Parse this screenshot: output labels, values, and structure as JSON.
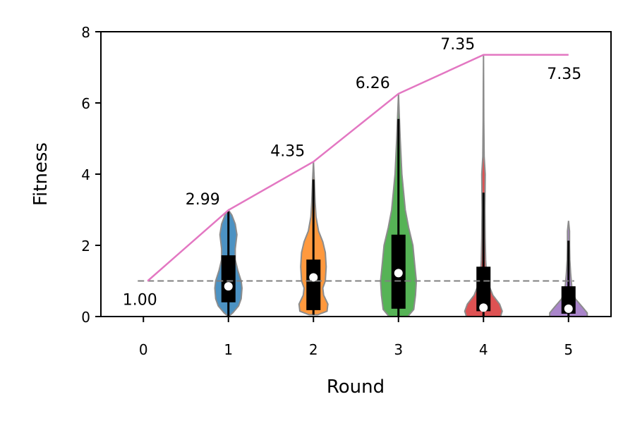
{
  "chart_data": {
    "type": "violin",
    "xlabel": "Round",
    "ylabel": "Fitness",
    "xlim": [
      -0.5,
      5.5
    ],
    "ylim": [
      0,
      8
    ],
    "x_ticks": [
      "0",
      "1",
      "2",
      "3",
      "4",
      "5"
    ],
    "y_ticks": [
      "0",
      "2",
      "4",
      "6",
      "8"
    ],
    "grid": false,
    "baseline": {
      "value": 1.0,
      "style": "dashed",
      "color": "#808080"
    },
    "max_line": {
      "color": "#e377c2",
      "x": [
        0,
        1,
        2,
        3,
        4,
        5
      ],
      "y": [
        1.0,
        2.99,
        4.35,
        6.26,
        7.35,
        7.35
      ],
      "labels": [
        "1.00",
        "2.99",
        "4.35",
        "6.26",
        "7.35",
        "7.35"
      ]
    },
    "violins": [
      {
        "x": 1,
        "color": "#1f77b4",
        "min": 0.0,
        "max": 2.99,
        "q1": 0.4,
        "median": 0.85,
        "q3": 1.72,
        "whisker_high": 2.95,
        "profile": [
          [
            0.0,
            0.0
          ],
          [
            0.1,
            0.05
          ],
          [
            0.3,
            0.12
          ],
          [
            0.5,
            0.15
          ],
          [
            0.8,
            0.16
          ],
          [
            1.0,
            0.15
          ],
          [
            1.3,
            0.11
          ],
          [
            1.6,
            0.08
          ],
          [
            1.9,
            0.08
          ],
          [
            2.3,
            0.1
          ],
          [
            2.6,
            0.08
          ],
          [
            2.85,
            0.04
          ],
          [
            2.99,
            0.0
          ]
        ]
      },
      {
        "x": 2,
        "color": "#ff7f0e",
        "min": 0.05,
        "max": 4.35,
        "q1": 0.18,
        "median": 1.1,
        "q3": 1.6,
        "whisker_high": 3.85,
        "profile": [
          [
            0.05,
            0.05
          ],
          [
            0.15,
            0.16
          ],
          [
            0.35,
            0.17
          ],
          [
            0.6,
            0.12
          ],
          [
            0.8,
            0.11
          ],
          [
            1.0,
            0.14
          ],
          [
            1.4,
            0.15
          ],
          [
            1.8,
            0.14
          ],
          [
            2.1,
            0.11
          ],
          [
            2.4,
            0.06
          ],
          [
            2.8,
            0.03
          ],
          [
            3.2,
            0.02
          ],
          [
            3.8,
            0.01
          ],
          [
            4.35,
            0.0
          ]
        ]
      },
      {
        "x": 3,
        "color": "#2ca02c",
        "min": 0.0,
        "max": 6.26,
        "q1": 0.22,
        "median": 1.22,
        "q3": 2.3,
        "whisker_high": 5.55,
        "profile": [
          [
            0.0,
            0.11
          ],
          [
            0.2,
            0.18
          ],
          [
            0.6,
            0.2
          ],
          [
            1.0,
            0.21
          ],
          [
            1.5,
            0.19
          ],
          [
            2.0,
            0.17
          ],
          [
            2.5,
            0.12
          ],
          [
            3.0,
            0.08
          ],
          [
            3.5,
            0.06
          ],
          [
            4.0,
            0.04
          ],
          [
            4.5,
            0.03
          ],
          [
            5.0,
            0.02
          ],
          [
            5.6,
            0.01
          ],
          [
            6.26,
            0.0
          ]
        ]
      },
      {
        "x": 4,
        "color": "#d62728",
        "min": 0.0,
        "max": 7.35,
        "q1": 0.15,
        "median": 0.25,
        "q3": 1.4,
        "whisker_high": 3.48,
        "profile": [
          [
            0.0,
            0.2
          ],
          [
            0.15,
            0.22
          ],
          [
            0.35,
            0.19
          ],
          [
            0.6,
            0.11
          ],
          [
            0.9,
            0.06
          ],
          [
            1.2,
            0.035
          ],
          [
            1.6,
            0.025
          ],
          [
            2.2,
            0.02
          ],
          [
            3.0,
            0.017
          ],
          [
            4.0,
            0.02
          ],
          [
            4.5,
            0.008
          ],
          [
            5.5,
            0.004
          ],
          [
            6.5,
            0.002
          ],
          [
            7.35,
            0.0
          ]
        ]
      },
      {
        "x": 5,
        "color": "#9467bd",
        "min": 0.0,
        "max": 2.69,
        "q1": 0.08,
        "median": 0.22,
        "q3": 0.85,
        "whisker_high": 2.13,
        "profile": [
          [
            0.0,
            0.22
          ],
          [
            0.1,
            0.22
          ],
          [
            0.25,
            0.17
          ],
          [
            0.5,
            0.08
          ],
          [
            0.8,
            0.04
          ],
          [
            1.2,
            0.025
          ],
          [
            1.6,
            0.015
          ],
          [
            2.0,
            0.012
          ],
          [
            2.4,
            0.012
          ],
          [
            2.69,
            0.0
          ]
        ]
      }
    ]
  }
}
